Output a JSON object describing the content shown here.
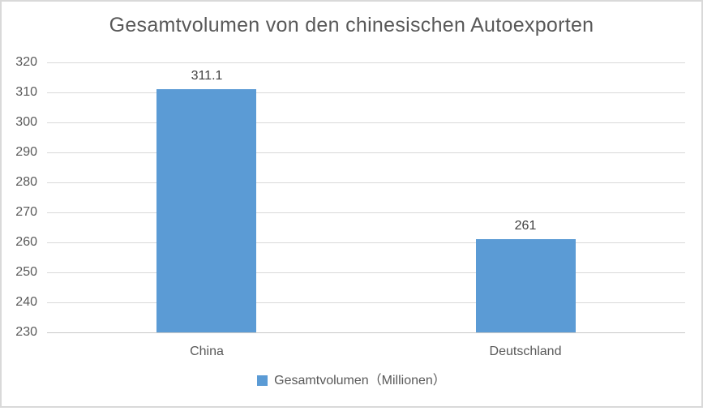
{
  "window": {
    "background": "#ffffff",
    "border_color": "#d9d9d9"
  },
  "chart_data": {
    "type": "bar",
    "title": "Gesamtvolumen von den chinesischen Autoexporten",
    "categories": [
      "China",
      "Deutschland"
    ],
    "series": [
      {
        "name": "Gesamtvolumen（Millionen）",
        "values": [
          311.1,
          261
        ],
        "color": "#5b9bd5"
      }
    ],
    "value_labels": [
      "311.1",
      "261"
    ],
    "xlabel": "",
    "ylabel": "",
    "ylim": [
      230,
      320
    ],
    "ytick_step": 10,
    "yticks": [
      320,
      310,
      300,
      290,
      280,
      270,
      260,
      250,
      240,
      230
    ],
    "grid": true,
    "legend_position": "bottom"
  },
  "colors": {
    "bar": "#5b9bd5",
    "gridline": "#d9d9d9",
    "baseline": "#c9c9c9",
    "axis_text": "#595959",
    "title_text": "#595959",
    "data_label_text": "#404040",
    "frame_border": "#d9d9d9"
  }
}
